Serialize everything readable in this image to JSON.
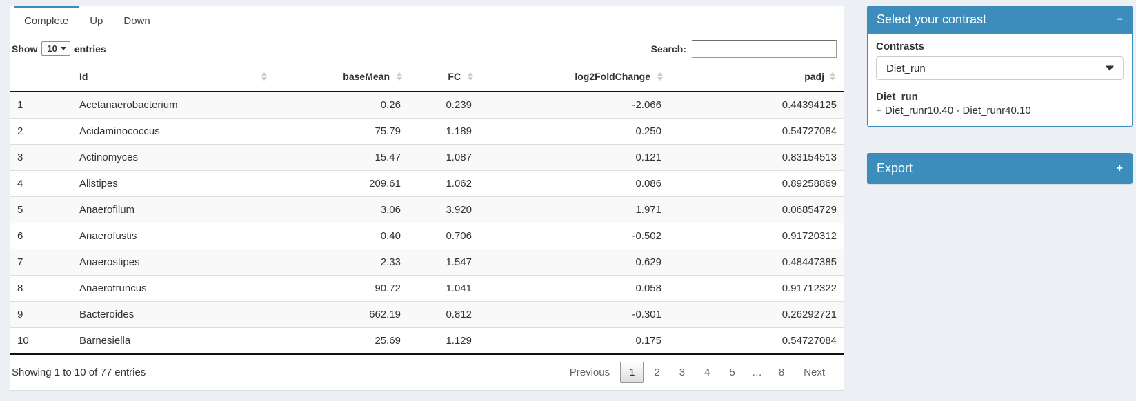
{
  "colors": {
    "primary": "#3c8dbc",
    "page_bg": "#ecf0f5",
    "stripe": "#f9f9f9"
  },
  "tabs": [
    {
      "label": "Complete",
      "active": true
    },
    {
      "label": "Up",
      "active": false
    },
    {
      "label": "Down",
      "active": false
    }
  ],
  "controls": {
    "show_label": "Show",
    "show_value": "10",
    "entries_label": "entries",
    "search_label": "Search:",
    "search_value": ""
  },
  "table": {
    "columns": [
      "Id",
      "baseMean",
      "FC",
      "log2FoldChange",
      "padj"
    ],
    "rows": [
      {
        "num": "1",
        "id": "Acetanaerobacterium",
        "basemean": "0.26",
        "fc": "0.239",
        "lfc": "-2.066",
        "padj": "0.44394125"
      },
      {
        "num": "2",
        "id": "Acidaminococcus",
        "basemean": "75.79",
        "fc": "1.189",
        "lfc": "0.250",
        "padj": "0.54727084"
      },
      {
        "num": "3",
        "id": "Actinomyces",
        "basemean": "15.47",
        "fc": "1.087",
        "lfc": "0.121",
        "padj": "0.83154513"
      },
      {
        "num": "4",
        "id": "Alistipes",
        "basemean": "209.61",
        "fc": "1.062",
        "lfc": "0.086",
        "padj": "0.89258869"
      },
      {
        "num": "5",
        "id": "Anaerofilum",
        "basemean": "3.06",
        "fc": "3.920",
        "lfc": "1.971",
        "padj": "0.06854729"
      },
      {
        "num": "6",
        "id": "Anaerofustis",
        "basemean": "0.40",
        "fc": "0.706",
        "lfc": "-0.502",
        "padj": "0.91720312"
      },
      {
        "num": "7",
        "id": "Anaerostipes",
        "basemean": "2.33",
        "fc": "1.547",
        "lfc": "0.629",
        "padj": "0.48447385"
      },
      {
        "num": "8",
        "id": "Anaerotruncus",
        "basemean": "90.72",
        "fc": "1.041",
        "lfc": "0.058",
        "padj": "0.91712322"
      },
      {
        "num": "9",
        "id": "Bacteroides",
        "basemean": "662.19",
        "fc": "0.812",
        "lfc": "-0.301",
        "padj": "0.26292721"
      },
      {
        "num": "10",
        "id": "Barnesiella",
        "basemean": "25.69",
        "fc": "1.129",
        "lfc": "0.175",
        "padj": "0.54727084"
      }
    ]
  },
  "footer": {
    "info": "Showing 1 to 10 of 77 entries",
    "pagination": [
      "Previous",
      "1",
      "2",
      "3",
      "4",
      "5",
      "…",
      "8",
      "Next"
    ]
  },
  "contrast_box": {
    "title": "Select your contrast",
    "collapse_icon": "−",
    "contrasts_label": "Contrasts",
    "selected_contrast": "Diet_run",
    "contrast_name": "Diet_run",
    "contrast_formula": "+ Diet_runr10.40 - Diet_runr40.10"
  },
  "export_box": {
    "title": "Export",
    "expand_icon": "+"
  }
}
